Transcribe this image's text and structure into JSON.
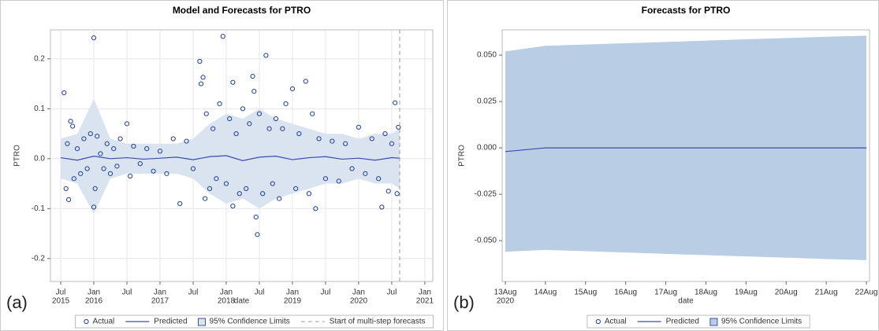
{
  "chart_data": [
    {
      "type": "line",
      "title": "Model and Forecasts for PTRO",
      "panel_label": "(a)",
      "x_label": "date",
      "y_label": "PTRO",
      "xlim": [
        2015.345,
        2021.12
      ],
      "ylim": [
        -0.246,
        0.258
      ],
      "xticks": [
        {
          "value": 2015.5,
          "label": "Jul"
        },
        {
          "value": 2016,
          "label": "Jan"
        },
        {
          "value": 2016.5,
          "label": "Jul"
        },
        {
          "value": 2017,
          "label": "Jan"
        },
        {
          "value": 2017.5,
          "label": "Jul"
        },
        {
          "value": 2018,
          "label": "Jan"
        },
        {
          "value": 2018.5,
          "label": "Jul"
        },
        {
          "value": 2019,
          "label": "Jan"
        },
        {
          "value": 2019.5,
          "label": "Jul"
        },
        {
          "value": 2020,
          "label": "Jan"
        },
        {
          "value": 2020.5,
          "label": "Jul"
        },
        {
          "value": 2021,
          "label": "Jan"
        }
      ],
      "xtick_years": [
        {
          "value": 2015.5,
          "label": "2015"
        },
        {
          "value": 2016,
          "label": "2016"
        },
        {
          "value": 2017,
          "label": "2017"
        },
        {
          "value": 2018,
          "label": "2018"
        },
        {
          "value": 2019,
          "label": "2019"
        },
        {
          "value": 2020,
          "label": "2020"
        },
        {
          "value": 2021,
          "label": "2021"
        }
      ],
      "yticks": [
        -0.2,
        -0.1,
        {
          "value": 0,
          "label": "0.0"
        },
        0.1,
        0.2
      ],
      "grid": true,
      "reference_line": {
        "value": 2020.62,
        "label": "Start of multi-step forecasts",
        "color": "#999999"
      },
      "series": [
        {
          "name": "Actual",
          "style": "markers",
          "color": "#1f3e9c",
          "x": [
            2015.55,
            2015.58,
            2015.6,
            2015.62,
            2015.65,
            2015.68,
            2015.7,
            2015.75,
            2015.8,
            2015.85,
            2015.9,
            2015.95,
            2016.0,
            2016.0,
            2016.02,
            2016.05,
            2016.1,
            2016.15,
            2016.2,
            2016.25,
            2016.3,
            2016.35,
            2016.4,
            2016.5,
            2016.55,
            2016.6,
            2016.7,
            2016.8,
            2016.9,
            2017.0,
            2017.1,
            2017.2,
            2017.3,
            2017.4,
            2017.5,
            2017.6,
            2017.62,
            2017.65,
            2017.68,
            2017.7,
            2017.75,
            2017.8,
            2017.85,
            2017.9,
            2017.95,
            2018.0,
            2018.05,
            2018.1,
            2018.1,
            2018.15,
            2018.2,
            2018.25,
            2018.3,
            2018.35,
            2018.4,
            2018.42,
            2018.45,
            2018.47,
            2018.5,
            2018.55,
            2018.6,
            2018.65,
            2018.7,
            2018.75,
            2018.8,
            2018.85,
            2018.9,
            2019.0,
            2019.05,
            2019.1,
            2019.2,
            2019.25,
            2019.3,
            2019.35,
            2019.4,
            2019.5,
            2019.6,
            2019.7,
            2019.8,
            2019.9,
            2020.0,
            2020.1,
            2020.2,
            2020.3,
            2020.35,
            2020.4,
            2020.45,
            2020.5,
            2020.55,
            2020.58,
            2020.6
          ],
          "values": [
            0.132,
            -0.06,
            0.03,
            -0.082,
            0.075,
            0.065,
            -0.04,
            0.02,
            -0.03,
            0.04,
            -0.02,
            0.05,
            0.242,
            -0.097,
            -0.06,
            0.045,
            0.01,
            -0.02,
            0.03,
            -0.03,
            0.02,
            -0.015,
            0.04,
            0.07,
            -0.035,
            0.025,
            -0.01,
            0.02,
            -0.025,
            0.015,
            -0.03,
            0.04,
            -0.09,
            0.035,
            -0.02,
            0.195,
            0.15,
            0.163,
            -0.08,
            0.09,
            -0.06,
            0.06,
            -0.04,
            0.11,
            0.245,
            -0.05,
            0.08,
            0.153,
            -0.095,
            0.05,
            -0.07,
            0.1,
            -0.06,
            0.07,
            0.165,
            0.135,
            -0.117,
            -0.152,
            0.09,
            -0.07,
            0.207,
            0.06,
            -0.05,
            0.08,
            -0.08,
            0.06,
            0.11,
            0.14,
            -0.06,
            0.05,
            0.155,
            -0.07,
            0.09,
            -0.1,
            0.04,
            -0.04,
            0.035,
            -0.045,
            0.03,
            -0.02,
            0.063,
            -0.03,
            0.04,
            -0.04,
            -0.097,
            0.05,
            -0.065,
            0.03,
            0.112,
            -0.07,
            0.063
          ]
        },
        {
          "name": "Predicted",
          "style": "line",
          "color": "#3b4cb0",
          "x": [
            2015.5,
            2015.75,
            2016,
            2016.25,
            2016.5,
            2016.75,
            2017,
            2017.25,
            2017.5,
            2017.75,
            2018,
            2018.25,
            2018.5,
            2018.75,
            2019,
            2019.25,
            2019.5,
            2019.75,
            2020,
            2020.25,
            2020.5,
            2020.62
          ],
          "values": [
            0.002,
            -0.003,
            0.005,
            0,
            0.002,
            -0.001,
            0.001,
            0.003,
            -0.002,
            0.004,
            0.006,
            -0.004,
            0.003,
            0.005,
            -0.002,
            0.002,
            0.004,
            -0.001,
            0.001,
            -0.003,
            0.002,
            0.001
          ]
        },
        {
          "name": "95% Confidence Limits",
          "style": "band",
          "color": "#dae4f0",
          "x": [
            2015.5,
            2015.75,
            2016,
            2016.25,
            2016.5,
            2016.75,
            2017,
            2017.25,
            2017.5,
            2017.75,
            2018,
            2018.25,
            2018.5,
            2018.75,
            2019,
            2019.25,
            2019.5,
            2019.75,
            2020,
            2020.25,
            2020.5,
            2020.62
          ],
          "upper": [
            0.04,
            0.05,
            0.12,
            0.04,
            0.03,
            0.03,
            0.03,
            0.03,
            0.04,
            0.07,
            0.09,
            0.08,
            0.1,
            0.08,
            0.07,
            0.06,
            0.05,
            0.05,
            0.04,
            0.05,
            0.05,
            0.06
          ],
          "lower": [
            -0.04,
            -0.05,
            -0.11,
            -0.04,
            -0.03,
            -0.03,
            -0.03,
            -0.03,
            -0.04,
            -0.07,
            -0.09,
            -0.08,
            -0.1,
            -0.08,
            -0.07,
            -0.06,
            -0.05,
            -0.05,
            -0.04,
            -0.05,
            -0.05,
            -0.06
          ]
        }
      ]
    },
    {
      "type": "line",
      "title": "Forecasts for PTRO",
      "panel_label": "(b)",
      "x_label": "date",
      "y_label": "PTRO",
      "categories": [
        "13Aug",
        "14Aug",
        "15Aug",
        "16Aug",
        "17Aug",
        "18Aug",
        "19Aug",
        "20Aug",
        "21Aug",
        "22Aug"
      ],
      "x_year_label": "2020",
      "ylim": [
        -0.072,
        0.0636
      ],
      "yticks": [
        {
          "value": -0.05,
          "label": "-0.050"
        },
        {
          "value": -0.025,
          "label": "-0.025"
        },
        {
          "value": 0,
          "label": "0.000"
        },
        {
          "value": 0.025,
          "label": "0.025"
        },
        {
          "value": 0.05,
          "label": "0.050"
        }
      ],
      "grid": false,
      "series": [
        {
          "name": "Actual",
          "style": "markers",
          "color": "#1f3e9c",
          "values": [
            null,
            null,
            null,
            null,
            null,
            null,
            null,
            null,
            null,
            null
          ]
        },
        {
          "name": "Predicted",
          "style": "line",
          "color": "#3b4cb0",
          "values": [
            -0.002,
            0,
            0,
            0,
            0,
            0,
            0,
            0,
            0,
            0
          ]
        },
        {
          "name": "95% Confidence Limits",
          "style": "band",
          "color": "#b9cde5",
          "upper": [
            0.052,
            0.055,
            0.0557,
            0.0564,
            0.0571,
            0.0578,
            0.0585,
            0.0592,
            0.0599,
            0.0605
          ],
          "lower": [
            -0.056,
            -0.055,
            -0.0557,
            -0.0564,
            -0.0571,
            -0.0578,
            -0.0585,
            -0.0592,
            -0.0599,
            -0.0605
          ]
        }
      ]
    }
  ]
}
